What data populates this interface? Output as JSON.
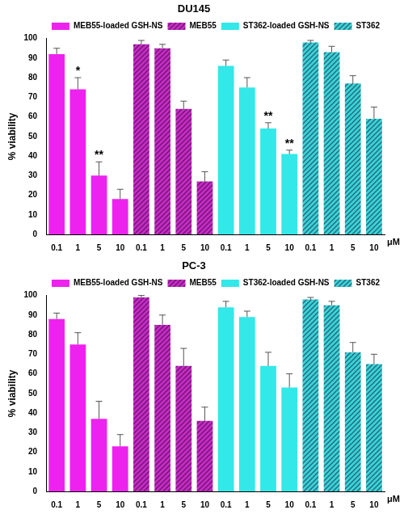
{
  "chart_data": [
    {
      "type": "bar",
      "title": "DU145",
      "categories": [
        "0.1",
        "1",
        "5",
        "10",
        "0.1",
        "1",
        "5",
        "10",
        "0.1",
        "1",
        "5",
        "10",
        "0.1",
        "1",
        "5",
        "10"
      ],
      "x_label": "μM",
      "y_label": "% viability",
      "ylim": [
        0,
        100
      ],
      "yticks": [
        0,
        10,
        20,
        30,
        40,
        50,
        60,
        70,
        80,
        90,
        100
      ],
      "grid": false,
      "legend": "top-right",
      "series": [
        {
          "name": "MEB55-loaded GSH-NS",
          "color": "#ee22ee",
          "values": [
            92,
            74,
            30,
            18,
            null,
            null,
            null,
            null,
            null,
            null,
            null,
            null,
            null,
            null,
            null,
            null
          ],
          "errors": [
            3,
            6,
            7,
            5,
            null,
            null,
            null,
            null,
            null,
            null,
            null,
            null,
            null,
            null,
            null,
            null
          ],
          "annotations": [
            null,
            "*",
            "**",
            null,
            null,
            null,
            null,
            null,
            null,
            null,
            null,
            null,
            null,
            null,
            null,
            null
          ]
        },
        {
          "name": "MEB55",
          "color": "#c42cc4",
          "values": [
            null,
            null,
            null,
            null,
            97,
            95,
            64,
            27,
            null,
            null,
            null,
            null,
            null,
            null,
            null,
            null
          ],
          "errors": [
            null,
            null,
            null,
            null,
            2,
            2,
            4,
            5,
            null,
            null,
            null,
            null,
            null,
            null,
            null,
            null
          ]
        },
        {
          "name": "ST362-loaded GSH-NS",
          "color": "#33e8e8",
          "values": [
            null,
            null,
            null,
            null,
            null,
            null,
            null,
            null,
            86,
            75,
            54,
            41,
            null,
            null,
            null,
            null
          ],
          "errors": [
            null,
            null,
            null,
            null,
            null,
            null,
            null,
            null,
            3,
            5,
            3,
            2,
            null,
            null,
            null,
            null
          ],
          "annotations": [
            null,
            null,
            null,
            null,
            null,
            null,
            null,
            null,
            null,
            null,
            "**",
            "**",
            null,
            null,
            null,
            null
          ]
        },
        {
          "name": "ST362",
          "color": "#33d6d6",
          "values": [
            null,
            null,
            null,
            null,
            null,
            null,
            null,
            null,
            null,
            null,
            null,
            null,
            98,
            93,
            77,
            59
          ],
          "errors": [
            null,
            null,
            null,
            null,
            null,
            null,
            null,
            null,
            null,
            null,
            null,
            null,
            1,
            3,
            4,
            6
          ]
        }
      ]
    },
    {
      "type": "bar",
      "title": "PC-3",
      "categories": [
        "0.1",
        "1",
        "5",
        "10",
        "0.1",
        "1",
        "5",
        "10",
        "0.1",
        "1",
        "5",
        "10",
        "0.1",
        "1",
        "5",
        "10"
      ],
      "x_label": "μM",
      "y_label": "% viability",
      "ylim": [
        0,
        100
      ],
      "yticks": [
        0,
        10,
        20,
        30,
        40,
        50,
        60,
        70,
        80,
        90,
        100
      ],
      "grid": false,
      "legend": "top-right",
      "series": [
        {
          "name": "MEB55-loaded GSH-NS",
          "color": "#ee22ee",
          "values": [
            88,
            75,
            37,
            23,
            null,
            null,
            null,
            null,
            null,
            null,
            null,
            null,
            null,
            null,
            null,
            null
          ],
          "errors": [
            3,
            6,
            9,
            6,
            null,
            null,
            null,
            null,
            null,
            null,
            null,
            null,
            null,
            null,
            null,
            null
          ]
        },
        {
          "name": "MEB55",
          "color": "#c42cc4",
          "values": [
            null,
            null,
            null,
            null,
            99,
            85,
            64,
            36,
            null,
            null,
            null,
            null,
            null,
            null,
            null,
            null
          ],
          "errors": [
            null,
            null,
            null,
            null,
            1,
            5,
            9,
            7,
            null,
            null,
            null,
            null,
            null,
            null,
            null,
            null
          ]
        },
        {
          "name": "ST362-loaded GSH-NS",
          "color": "#33e8e8",
          "values": [
            null,
            null,
            null,
            null,
            null,
            null,
            null,
            null,
            94,
            89,
            64,
            53,
            null,
            null,
            null,
            null
          ],
          "errors": [
            null,
            null,
            null,
            null,
            null,
            null,
            null,
            null,
            3,
            3,
            7,
            7,
            null,
            null,
            null,
            null
          ]
        },
        {
          "name": "ST362",
          "color": "#33d6d6",
          "values": [
            null,
            null,
            null,
            null,
            null,
            null,
            null,
            null,
            null,
            null,
            null,
            null,
            98,
            95,
            71,
            65
          ],
          "errors": [
            null,
            null,
            null,
            null,
            null,
            null,
            null,
            null,
            null,
            null,
            null,
            null,
            1,
            2,
            5,
            5
          ]
        }
      ]
    }
  ]
}
